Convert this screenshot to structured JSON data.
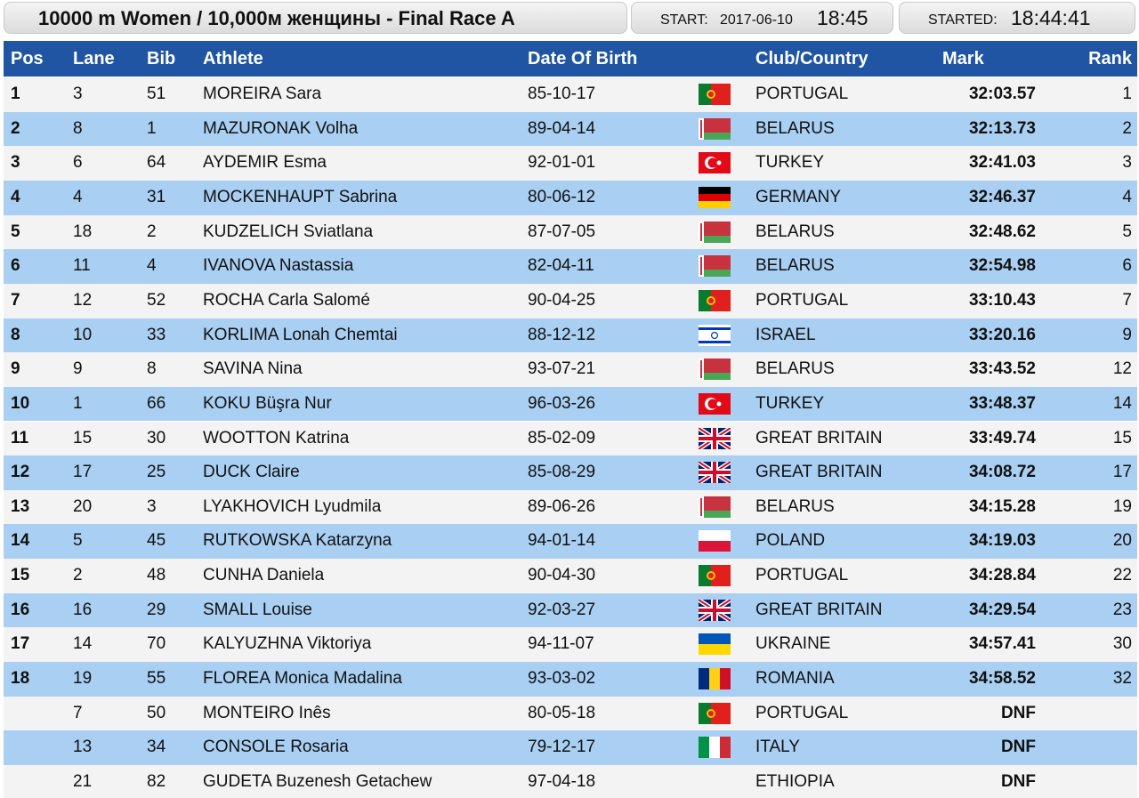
{
  "header": {
    "title": "10000 m Women / 10,000м женщины - Final Race A",
    "start_label": "START:",
    "start_date": "2017-06-10",
    "start_time": "18:45",
    "started_label": "STARTED:",
    "started_time": "18:44:41"
  },
  "table": {
    "columns": [
      "Pos",
      "Lane",
      "Bib",
      "Athlete",
      "Date Of Birth",
      "Club/Country",
      "Mark",
      "Rank"
    ],
    "rows": [
      [
        "1",
        "3",
        "51",
        "MOREIRA Sara",
        "85-10-17",
        "PORTUGAL",
        "32:03.57",
        "1"
      ],
      [
        "2",
        "8",
        "1",
        "MAZURONAK Volha",
        "89-04-14",
        "BELARUS",
        "32:13.73",
        "2"
      ],
      [
        "3",
        "6",
        "64",
        "AYDEMIR Esma",
        "92-01-01",
        "TURKEY",
        "32:41.03",
        "3"
      ],
      [
        "4",
        "4",
        "31",
        "MOCKENHAUPT Sabrina",
        "80-06-12",
        "GERMANY",
        "32:46.37",
        "4"
      ],
      [
        "5",
        "18",
        "2",
        "KUDZELICH Sviatlana",
        "87-07-05",
        "BELARUS",
        "32:48.62",
        "5"
      ],
      [
        "6",
        "11",
        "4",
        "IVANOVA Nastassia",
        "82-04-11",
        "BELARUS",
        "32:54.98",
        "6"
      ],
      [
        "7",
        "12",
        "52",
        "ROCHA Carla Salomé",
        "90-04-25",
        "PORTUGAL",
        "33:10.43",
        "7"
      ],
      [
        "8",
        "10",
        "33",
        "KORLIMA Lonah Chemtai",
        "88-12-12",
        "ISRAEL",
        "33:20.16",
        "9"
      ],
      [
        "9",
        "9",
        "8",
        "SAVINA Nina",
        "93-07-21",
        "BELARUS",
        "33:43.52",
        "12"
      ],
      [
        "10",
        "1",
        "66",
        "KOKU Büşra Nur",
        "96-03-26",
        "TURKEY",
        "33:48.37",
        "14"
      ],
      [
        "11",
        "15",
        "30",
        "WOOTTON Katrina",
        "85-02-09",
        "GREAT BRITAIN",
        "33:49.74",
        "15"
      ],
      [
        "12",
        "17",
        "25",
        "DUCK Claire",
        "85-08-29",
        "GREAT BRITAIN",
        "34:08.72",
        "17"
      ],
      [
        "13",
        "20",
        "3",
        "LYAKHOVICH Lyudmila",
        "89-06-26",
        "BELARUS",
        "34:15.28",
        "19"
      ],
      [
        "14",
        "5",
        "45",
        "RUTKOWSKA Katarzyna",
        "94-01-14",
        "POLAND",
        "34:19.03",
        "20"
      ],
      [
        "15",
        "2",
        "48",
        "CUNHA Daniela",
        "90-04-30",
        "PORTUGAL",
        "34:28.84",
        "22"
      ],
      [
        "16",
        "16",
        "29",
        "SMALL Louise",
        "92-03-27",
        "GREAT BRITAIN",
        "34:29.54",
        "23"
      ],
      [
        "17",
        "14",
        "70",
        "KALYUZHNA Viktoriya",
        "94-11-07",
        "UKRAINE",
        "34:57.41",
        "30"
      ],
      [
        "18",
        "19",
        "55",
        "FLOREA Monica Madalina",
        "93-03-02",
        "ROMANIA",
        "34:58.52",
        "32"
      ],
      [
        null,
        "7",
        "50",
        "MONTEIRO Inês",
        "80-05-18",
        "PORTUGAL",
        "DNF",
        null
      ],
      [
        null,
        "13",
        "34",
        "CONSOLE Rosaria",
        "79-12-17",
        "ITALY",
        "DNF",
        null
      ],
      [
        null,
        "21",
        "82",
        "GUDETA Buzenesh Getachew",
        "97-04-18",
        "ETHIOPIA",
        "DNF",
        null
      ]
    ]
  }
}
